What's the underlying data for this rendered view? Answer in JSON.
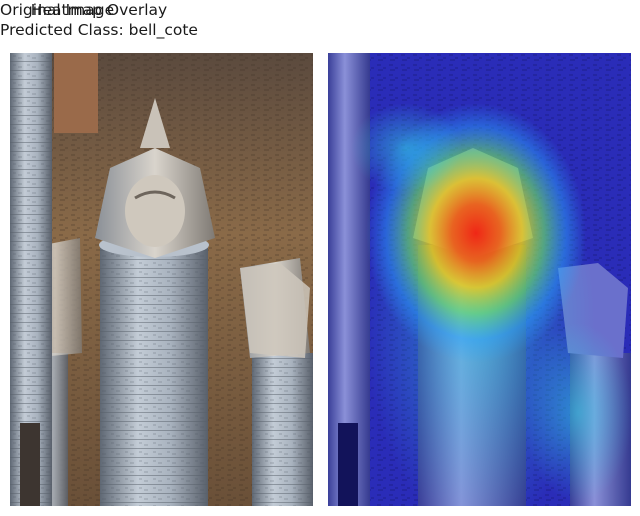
{
  "figure": {
    "left_title": "Original Image",
    "right_title_line1": "Heatmap Overlay",
    "right_title_line2": "Predicted Class: bell_cote"
  },
  "colors": {
    "stone_light": "#b9c3cf",
    "stone_shadow": "#6a7380",
    "ceiling": "#7a5a3c",
    "overlay_base": "#1f22c8",
    "heat_peak": "#ff2a00"
  }
}
